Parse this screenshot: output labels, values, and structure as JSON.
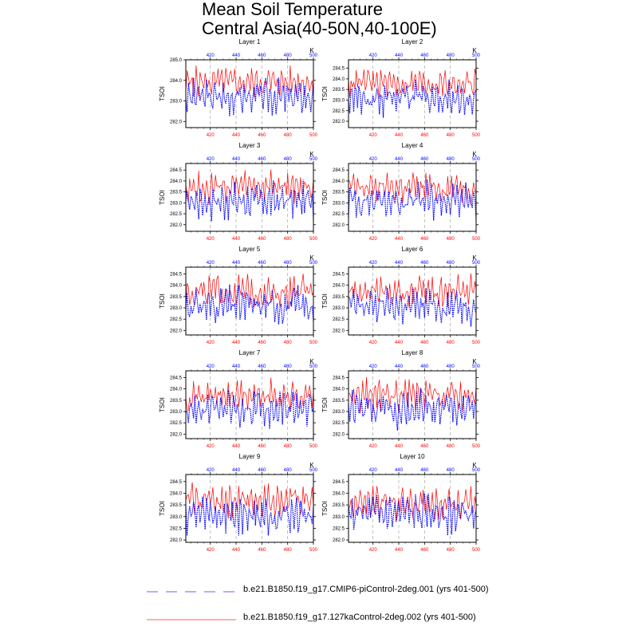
{
  "title_lines": [
    "Mean Soil Temperature",
    "Central Asia(40-50N,40-100E)"
  ],
  "colors": {
    "series_a": "#0000ff",
    "series_b": "#ff0000",
    "frame": "#000000"
  },
  "chart_data": {
    "type": "line",
    "ylabel": "TSOI",
    "time_unit_label": "K",
    "x_ticks": [
      420,
      440,
      460,
      480,
      500
    ],
    "xlim": [
      401,
      500
    ],
    "grid": "dashed vertical lines at 420, 440, 460, 480",
    "legend_placement": "bottom",
    "series_names": [
      "b.e21.B1850.f19_g17.CMIP6-piControl-2deg.001 (yrs 401-500)",
      "b.e21.B1850.f19_g17.127kaControl-2deg.002 (yrs 401-500)"
    ],
    "panels": [
      {
        "label": "Layer 1",
        "ylim": [
          281.7,
          285.0
        ],
        "yticks": [
          "282.0",
          "283.0",
          "284.0",
          "285.0"
        ],
        "piControl_mean": 283.2,
        "ka127_mean": 283.9
      },
      {
        "label": "Layer 2",
        "ylim": [
          281.7,
          284.9
        ],
        "yticks": [
          "282.0",
          "282.5",
          "283.0",
          "283.5",
          "284.0",
          "284.5"
        ],
        "piControl_mean": 283.1,
        "ka127_mean": 283.8
      },
      {
        "label": "Layer 3",
        "ylim": [
          281.7,
          284.8
        ],
        "yticks": [
          "282.0",
          "282.5",
          "283.0",
          "283.5",
          "284.0",
          "284.5"
        ],
        "piControl_mean": 283.1,
        "ka127_mean": 283.7
      },
      {
        "label": "Layer 4",
        "ylim": [
          281.7,
          284.8
        ],
        "yticks": [
          "282.0",
          "282.5",
          "283.0",
          "283.5",
          "284.0",
          "284.5"
        ],
        "piControl_mean": 283.1,
        "ka127_mean": 283.7
      },
      {
        "label": "Layer 5",
        "ylim": [
          281.8,
          284.8
        ],
        "yticks": [
          "282.0",
          "282.5",
          "283.0",
          "283.5",
          "284.0",
          "284.5"
        ],
        "piControl_mean": 283.1,
        "ka127_mean": 283.7
      },
      {
        "label": "Layer 6",
        "ylim": [
          281.8,
          284.8
        ],
        "yticks": [
          "282.0",
          "282.5",
          "283.0",
          "283.5",
          "284.0",
          "284.5"
        ],
        "piControl_mean": 283.1,
        "ka127_mean": 283.7
      },
      {
        "label": "Layer 7",
        "ylim": [
          281.8,
          284.8
        ],
        "yticks": [
          "282.0",
          "282.5",
          "283.0",
          "283.5",
          "284.0",
          "284.5"
        ],
        "piControl_mean": 283.1,
        "ka127_mean": 283.7
      },
      {
        "label": "Layer 8",
        "ylim": [
          281.8,
          284.8
        ],
        "yticks": [
          "282.0",
          "282.5",
          "283.0",
          "283.5",
          "284.0",
          "284.5"
        ],
        "piControl_mean": 283.1,
        "ka127_mean": 283.7
      },
      {
        "label": "Layer 9",
        "ylim": [
          281.9,
          284.8
        ],
        "yticks": [
          "282.0",
          "282.5",
          "283.0",
          "283.5",
          "284.0",
          "284.5"
        ],
        "piControl_mean": 283.1,
        "ka127_mean": 283.7
      },
      {
        "label": "Layer 10",
        "ylim": [
          281.9,
          284.8
        ],
        "yticks": [
          "282.0",
          "282.5",
          "283.0",
          "283.5",
          "284.0",
          "284.5"
        ],
        "piControl_mean": 283.1,
        "ka127_mean": 283.6
      }
    ]
  }
}
